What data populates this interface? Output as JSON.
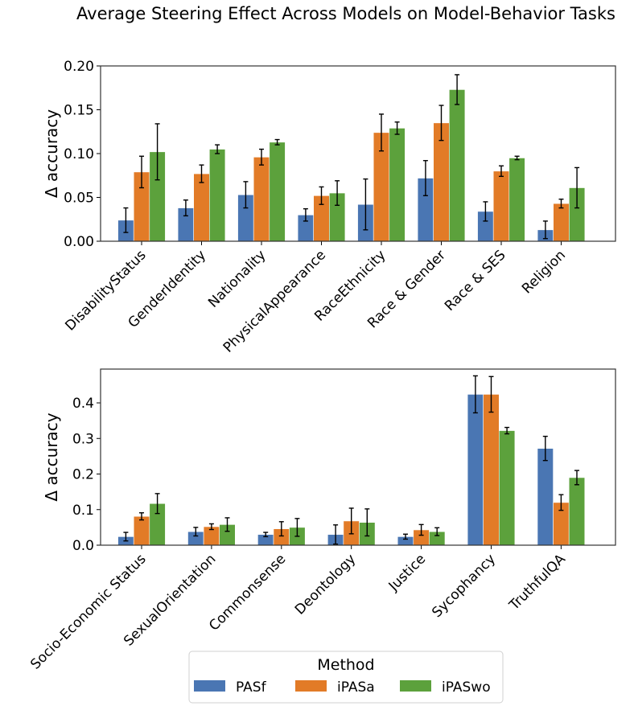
{
  "figure_title": "Average Steering Effect Across Models on Model-Behavior Tasks",
  "legend": {
    "title": "Method",
    "entries": [
      "PASf",
      "iPASa",
      "iPASwo"
    ],
    "placement": "bottom-center"
  },
  "colors": {
    "PASf": "#4a76b3",
    "iPASa": "#e27b27",
    "iPASwo": "#5ca13c"
  },
  "chart_data": [
    {
      "type": "bar",
      "ylabel": "Δ accuracy",
      "ylim": [
        0,
        0.2
      ],
      "yticks": [
        0.0,
        0.05,
        0.1,
        0.15,
        0.2
      ],
      "ytick_labels": [
        "0.00",
        "0.05",
        "0.10",
        "0.15",
        "0.20"
      ],
      "categories": [
        "DisabilityStatus",
        "GenderIdentity",
        "Nationality",
        "PhysicalAppearance",
        "RaceEthnicity",
        "Race & Gender",
        "Race & SES",
        "Religion"
      ],
      "series": [
        {
          "name": "PASf",
          "values": [
            0.024,
            0.038,
            0.053,
            0.03,
            0.042,
            0.072,
            0.034,
            0.013
          ],
          "errors": [
            0.014,
            0.009,
            0.015,
            0.007,
            0.029,
            0.02,
            0.011,
            0.01
          ]
        },
        {
          "name": "iPASa",
          "values": [
            0.079,
            0.077,
            0.096,
            0.052,
            0.124,
            0.135,
            0.08,
            0.043
          ],
          "errors": [
            0.018,
            0.01,
            0.009,
            0.01,
            0.021,
            0.02,
            0.006,
            0.005
          ]
        },
        {
          "name": "iPASwo",
          "values": [
            0.102,
            0.105,
            0.113,
            0.055,
            0.129,
            0.173,
            0.095,
            0.061
          ],
          "errors": [
            0.032,
            0.005,
            0.003,
            0.014,
            0.007,
            0.017,
            0.002,
            0.023
          ]
        }
      ]
    },
    {
      "type": "bar",
      "ylabel": "Δ accuracy",
      "ylim": [
        0,
        0.495
      ],
      "yticks": [
        0.0,
        0.1,
        0.2,
        0.3,
        0.4
      ],
      "ytick_labels": [
        "0.0",
        "0.1",
        "0.2",
        "0.3",
        "0.4"
      ],
      "categories": [
        "Socio-Economic Status",
        "SexualOrientation",
        "Commonsense",
        "Deontology",
        "Justice",
        "Sycophancy",
        "TruthfulQA"
      ],
      "series": [
        {
          "name": "PASf",
          "values": [
            0.024,
            0.038,
            0.03,
            0.03,
            0.024,
            0.424,
            0.272
          ],
          "errors": [
            0.012,
            0.012,
            0.006,
            0.027,
            0.007,
            0.052,
            0.034
          ]
        },
        {
          "name": "iPASa",
          "values": [
            0.081,
            0.052,
            0.046,
            0.068,
            0.043,
            0.424,
            0.12
          ],
          "errors": [
            0.01,
            0.008,
            0.02,
            0.036,
            0.015,
            0.05,
            0.022
          ]
        },
        {
          "name": "iPASwo",
          "values": [
            0.117,
            0.058,
            0.05,
            0.064,
            0.038,
            0.322,
            0.19
          ],
          "errors": [
            0.028,
            0.019,
            0.025,
            0.038,
            0.011,
            0.009,
            0.02
          ]
        }
      ]
    }
  ]
}
